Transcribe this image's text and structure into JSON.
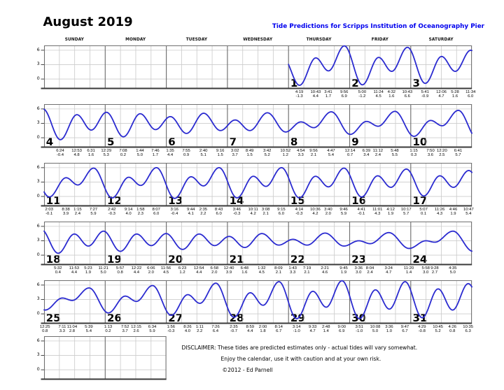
{
  "title": "August 2019",
  "subtitle": "Tide Predictions for Scripps Institution of Oceanography Pier",
  "weekdays": [
    "SUNDAY",
    "MONDAY",
    "TUESDAY",
    "WEDNESDAY",
    "THURSDAY",
    "FRIDAY",
    "SATURDAY"
  ],
  "disclaimer": {
    "line1": "DISCLAIMER: These tides are predicted estimates only - actual tides will vary somewhat.",
    "line2": "Enjoy the calendar, use it with caution and at your own risk.",
    "line3": "©2012 - Ed Parnell"
  },
  "colors": {
    "curve": "#2b2bd0",
    "subtitle": "#0000ee",
    "grid_light": "#cccccc",
    "grid_dark": "#707070",
    "grid_bottom": "#3a3a3a"
  },
  "chart_data": {
    "type": "line",
    "title": "August 2019",
    "y_ticks": [
      6,
      3,
      0
    ],
    "ylim": [
      -2.1,
      7.0
    ],
    "x_unit": "time of day per calendar cell",
    "weeks": [
      {
        "days": [
          {},
          {},
          {},
          {},
          {
            "date": 1,
            "tides": [
              {
                "time": "4:19",
                "ft": "-1.3"
              },
              {
                "time": "10:43",
                "ft": "4.4"
              },
              {
                "time": "3:41",
                "ft": "1.7"
              },
              {
                "time": "9:56",
                "ft": "6.9"
              }
            ]
          },
          {
            "date": 2,
            "tides": [
              {
                "time": "5:00",
                "ft": "-1.2"
              },
              {
                "time": "11:24",
                "ft": "4.5"
              },
              {
                "time": "4:32",
                "ft": "1.6"
              },
              {
                "time": "10:43",
                "ft": "6.6"
              }
            ]
          },
          {
            "date": 3,
            "tides": [
              {
                "time": "5:41",
                "ft": "-0.9"
              },
              {
                "time": "12:06",
                "ft": "4.7"
              },
              {
                "time": "5:28",
                "ft": "1.6"
              },
              {
                "time": "11:34",
                "ft": "6.0"
              }
            ]
          }
        ]
      },
      {
        "days": [
          {
            "date": 4,
            "tides": [
              {
                "time": "6:24",
                "ft": "-0.4"
              },
              {
                "time": "12:53",
                "ft": "4.8"
              },
              {
                "time": "6:31",
                "ft": "1.6"
              }
            ]
          },
          {
            "date": 5,
            "tides": [
              {
                "time": "12:29",
                "ft": "5.3"
              },
              {
                "time": "7:08",
                "ft": "0.2"
              },
              {
                "time": "1:44",
                "ft": "5.0"
              },
              {
                "time": "7:46",
                "ft": "1.7"
              }
            ]
          },
          {
            "date": 6,
            "tides": [
              {
                "time": "1:35",
                "ft": "4.4"
              },
              {
                "time": "7:55",
                "ft": "0.9"
              },
              {
                "time": "2:40",
                "ft": "5.1"
              },
              {
                "time": "9:16",
                "ft": "1.5"
              }
            ]
          },
          {
            "date": 7,
            "tides": [
              {
                "time": "3:02",
                "ft": "3.7"
              },
              {
                "time": "8:49",
                "ft": "1.5"
              },
              {
                "time": "3:42",
                "ft": "5.2"
              },
              {
                "time": "10:52",
                "ft": "1.2"
              }
            ]
          },
          {
            "date": 8,
            "tides": [
              {
                "time": "4:54",
                "ft": "3.3"
              },
              {
                "time": "9:56",
                "ft": "2.1"
              },
              {
                "time": "4:47",
                "ft": "5.4"
              }
            ]
          },
          {
            "date": 9,
            "tides": [
              {
                "time": "12:14",
                "ft": "0.7"
              },
              {
                "time": "6:39",
                "ft": "3.4"
              },
              {
                "time": "11:12",
                "ft": "2.4"
              },
              {
                "time": "5:48",
                "ft": "5.5"
              }
            ]
          },
          {
            "date": 10,
            "tides": [
              {
                "time": "1:15",
                "ft": "0.3"
              },
              {
                "time": "7:50",
                "ft": "3.6"
              },
              {
                "time": "12:20",
                "ft": "2.5"
              },
              {
                "time": "6:41",
                "ft": "5.7"
              }
            ]
          }
        ]
      },
      {
        "days": [
          {
            "date": 11,
            "tides": [
              {
                "time": "2:03",
                "ft": "-0.1"
              },
              {
                "time": "8:38",
                "ft": "3.9"
              },
              {
                "time": "1:15",
                "ft": "2.4"
              },
              {
                "time": "7:27",
                "ft": "5.9"
              }
            ]
          },
          {
            "date": 12,
            "tides": [
              {
                "time": "2:42",
                "ft": "-0.3"
              },
              {
                "time": "9:14",
                "ft": "4.0"
              },
              {
                "time": "1:58",
                "ft": "2.3"
              },
              {
                "time": "8:07",
                "ft": "6.0"
              }
            ]
          },
          {
            "date": 13,
            "tides": [
              {
                "time": "3:16",
                "ft": "-0.4"
              },
              {
                "time": "9:44",
                "ft": "4.1"
              },
              {
                "time": "2:35",
                "ft": "2.2"
              },
              {
                "time": "8:43",
                "ft": "6.0"
              }
            ]
          },
          {
            "date": 14,
            "tides": [
              {
                "time": "3:46",
                "ft": "-0.3"
              },
              {
                "time": "10:11",
                "ft": "4.2"
              },
              {
                "time": "3:08",
                "ft": "2.1"
              },
              {
                "time": "9:15",
                "ft": "6.0"
              }
            ]
          },
          {
            "date": 15,
            "tides": [
              {
                "time": "4:14",
                "ft": "-0.3"
              },
              {
                "time": "10:36",
                "ft": "4.2"
              },
              {
                "time": "3:40",
                "ft": "2.0"
              },
              {
                "time": "9:46",
                "ft": "5.9"
              }
            ]
          },
          {
            "date": 16,
            "tides": [
              {
                "time": "4:41",
                "ft": "-0.1"
              },
              {
                "time": "11:01",
                "ft": "4.3"
              },
              {
                "time": "4:12",
                "ft": "1.9"
              },
              {
                "time": "10:17",
                "ft": "5.7"
              }
            ]
          },
          {
            "date": 17,
            "tides": [
              {
                "time": "5:07",
                "ft": "0.1"
              },
              {
                "time": "11:26",
                "ft": "4.3"
              },
              {
                "time": "4:46",
                "ft": "1.9"
              },
              {
                "time": "10:47",
                "ft": "5.4"
              }
            ]
          }
        ]
      },
      {
        "days": [
          {
            "date": 18,
            "tides": [
              {
                "time": "5:32",
                "ft": "0.4"
              },
              {
                "time": "11:53",
                "ft": "4.4"
              },
              {
                "time": "5:23",
                "ft": "1.9"
              },
              {
                "time": "11:21",
                "ft": "5.0"
              }
            ]
          },
          {
            "date": 19,
            "tides": [
              {
                "time": "5:57",
                "ft": "0.8"
              },
              {
                "time": "12:22",
                "ft": "4.4"
              },
              {
                "time": "6:06",
                "ft": "2.0"
              },
              {
                "time": "11:56",
                "ft": "4.5"
              }
            ]
          },
          {
            "date": 20,
            "tides": [
              {
                "time": "6:23",
                "ft": "1.2"
              },
              {
                "time": "12:54",
                "ft": "4.4"
              },
              {
                "time": "6:58",
                "ft": "2.0"
              }
            ]
          },
          {
            "date": 21,
            "tides": [
              {
                "time": "12:40",
                "ft": "3.9"
              },
              {
                "time": "6:48",
                "ft": "1.6"
              },
              {
                "time": "1:32",
                "ft": "4.5"
              },
              {
                "time": "8:09",
                "ft": "2.1"
              }
            ]
          },
          {
            "date": 22,
            "tides": [
              {
                "time": "1:43",
                "ft": "3.3"
              },
              {
                "time": "7:19",
                "ft": "2.1"
              },
              {
                "time": "2:21",
                "ft": "4.6"
              },
              {
                "time": "9:45",
                "ft": "1.9"
              }
            ]
          },
          {
            "date": 23,
            "tides": [
              {
                "time": "3:36",
                "ft": "3.0"
              },
              {
                "time": "8:04",
                "ft": "2.4"
              },
              {
                "time": "3:24",
                "ft": "4.7"
              },
              {
                "time": "11:20",
                "ft": "1.4"
              }
            ]
          },
          {
            "date": 24,
            "tides": [
              {
                "time": "5:58",
                "ft": "3.0"
              },
              {
                "time": "9:28",
                "ft": "2.7"
              },
              {
                "time": "4:35",
                "ft": "5.0"
              }
            ]
          }
        ]
      },
      {
        "days": [
          {
            "date": 25,
            "tides": [
              {
                "time": "12:25",
                "ft": "0.8"
              },
              {
                "time": "7:11",
                "ft": "3.3"
              },
              {
                "time": "11:04",
                "ft": "2.8"
              },
              {
                "time": "5:39",
                "ft": "5.4"
              }
            ]
          },
          {
            "date": 26,
            "tides": [
              {
                "time": "1:13",
                "ft": "0.2"
              },
              {
                "time": "7:52",
                "ft": "3.7"
              },
              {
                "time": "12:15",
                "ft": "2.6"
              },
              {
                "time": "6:34",
                "ft": "5.9"
              }
            ]
          },
          {
            "date": 27,
            "tides": [
              {
                "time": "1:56",
                "ft": "-0.3"
              },
              {
                "time": "8:26",
                "ft": "4.0"
              },
              {
                "time": "1:11",
                "ft": "2.2"
              },
              {
                "time": "7:26",
                "ft": "6.4"
              }
            ]
          },
          {
            "date": 28,
            "tides": [
              {
                "time": "2:35",
                "ft": "-0.7"
              },
              {
                "time": "8:59",
                "ft": "4.4"
              },
              {
                "time": "2:00",
                "ft": "1.8"
              },
              {
                "time": "8:14",
                "ft": "6.7"
              }
            ]
          },
          {
            "date": 29,
            "tides": [
              {
                "time": "3:14",
                "ft": "-1.0"
              },
              {
                "time": "9:33",
                "ft": "4.7"
              },
              {
                "time": "2:48",
                "ft": "1.4"
              },
              {
                "time": "9:00",
                "ft": "6.9"
              }
            ]
          },
          {
            "date": 30,
            "tides": [
              {
                "time": "3:51",
                "ft": "-1.0"
              },
              {
                "time": "10:08",
                "ft": "5.0"
              },
              {
                "time": "3:36",
                "ft": "1.0"
              },
              {
                "time": "9:47",
                "ft": "6.7"
              }
            ]
          },
          {
            "date": 31,
            "tides": [
              {
                "time": "4:29",
                "ft": "-0.8"
              },
              {
                "time": "10:45",
                "ft": "5.2"
              },
              {
                "time": "4:26",
                "ft": "0.8"
              },
              {
                "time": "10:35",
                "ft": "6.3"
              }
            ]
          }
        ]
      }
    ]
  }
}
